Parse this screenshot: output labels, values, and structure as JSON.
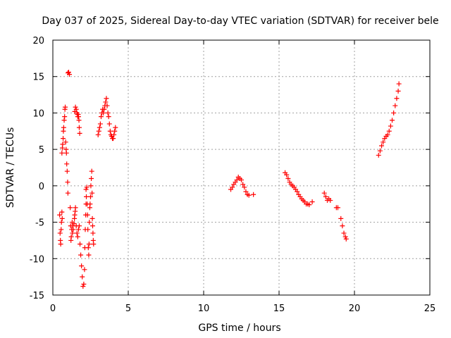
{
  "chart_data": {
    "type": "scatter",
    "title": "Day 037 of 2025, Sidereal Day-to-day VTEC variation (SDTVAR) for receiver bele",
    "xlabel": "GPS time / hours",
    "ylabel": "SDTVAR / TECUs",
    "xlim": [
      0,
      25
    ],
    "ylim": [
      -15,
      20
    ],
    "xticks": [
      0,
      5,
      10,
      15,
      20,
      25
    ],
    "yticks": [
      -15,
      -10,
      -5,
      0,
      5,
      10,
      15,
      20
    ],
    "x_tick_labels": [
      "0",
      "5",
      "10",
      "15",
      "20",
      "25"
    ],
    "y_tick_labels": [
      "-15",
      "-10",
      "-5",
      "0",
      "5",
      "10",
      "15",
      "20"
    ],
    "grid": true,
    "marker": "plus",
    "color": "#ff0000",
    "series": [
      {
        "name": "SDTVAR",
        "points": [
          [
            0.45,
            -4.0
          ],
          [
            0.48,
            -6.5
          ],
          [
            0.5,
            -7.5
          ],
          [
            0.52,
            -8.0
          ],
          [
            0.55,
            -6.0
          ],
          [
            0.57,
            -5.0
          ],
          [
            0.6,
            -3.6
          ],
          [
            0.62,
            -4.5
          ],
          [
            0.6,
            4.5
          ],
          [
            0.63,
            5.2
          ],
          [
            0.65,
            5.7
          ],
          [
            0.68,
            6.5
          ],
          [
            0.7,
            7.5
          ],
          [
            0.72,
            8.0
          ],
          [
            0.75,
            9.0
          ],
          [
            0.78,
            9.5
          ],
          [
            0.8,
            10.5
          ],
          [
            0.82,
            10.8
          ],
          [
            0.85,
            6.0
          ],
          [
            0.88,
            5.0
          ],
          [
            0.9,
            4.5
          ],
          [
            0.92,
            3.0
          ],
          [
            0.95,
            2.0
          ],
          [
            0.98,
            0.5
          ],
          [
            1.0,
            -1.0
          ],
          [
            1.0,
            15.5
          ],
          [
            1.05,
            15.6
          ],
          [
            1.1,
            15.3
          ],
          [
            1.15,
            -3.0
          ],
          [
            1.18,
            -5.5
          ],
          [
            1.2,
            -7.5
          ],
          [
            1.22,
            -7.0
          ],
          [
            1.25,
            -6.0
          ],
          [
            1.28,
            -5.0
          ],
          [
            1.3,
            -6.5
          ],
          [
            1.32,
            -5.5
          ],
          [
            1.35,
            -6.0
          ],
          [
            1.4,
            -5.2
          ],
          [
            1.43,
            -4.5
          ],
          [
            1.45,
            -4.0
          ],
          [
            1.48,
            -3.5
          ],
          [
            1.5,
            -3.0
          ],
          [
            1.45,
            10.2
          ],
          [
            1.5,
            10.8
          ],
          [
            1.55,
            10.5
          ],
          [
            1.6,
            10.0
          ],
          [
            1.63,
            9.8
          ],
          [
            1.65,
            9.5
          ],
          [
            1.68,
            9.8
          ],
          [
            1.7,
            9.5
          ],
          [
            1.73,
            9.0
          ],
          [
            1.75,
            8.0
          ],
          [
            1.78,
            7.2
          ],
          [
            1.55,
            -5.5
          ],
          [
            1.6,
            -6.5
          ],
          [
            1.65,
            -7.0
          ],
          [
            1.7,
            -6.0
          ],
          [
            1.75,
            -5.5
          ],
          [
            1.8,
            -8.0
          ],
          [
            1.85,
            -9.5
          ],
          [
            1.9,
            -11.0
          ],
          [
            1.95,
            -12.5
          ],
          [
            2.0,
            -13.8
          ],
          [
            2.05,
            -13.5
          ],
          [
            2.1,
            -11.5
          ],
          [
            2.12,
            -8.5
          ],
          [
            2.15,
            -6.0
          ],
          [
            2.18,
            -4.0
          ],
          [
            2.2,
            -2.5
          ],
          [
            2.2,
            -0.5
          ],
          [
            2.22,
            -1.5
          ],
          [
            2.25,
            -0.2
          ],
          [
            2.28,
            -2.5
          ],
          [
            2.3,
            -4.0
          ],
          [
            2.32,
            -6.0
          ],
          [
            2.35,
            -8.5
          ],
          [
            2.38,
            -9.5
          ],
          [
            2.4,
            -8.0
          ],
          [
            2.42,
            -5.0
          ],
          [
            2.45,
            -3.0
          ],
          [
            2.47,
            -2.5
          ],
          [
            2.5,
            -1.5
          ],
          [
            2.52,
            0.0
          ],
          [
            2.55,
            1.0
          ],
          [
            2.58,
            2.0
          ],
          [
            2.6,
            -1.0
          ],
          [
            2.62,
            -4.5
          ],
          [
            2.64,
            -5.5
          ],
          [
            2.66,
            -6.5
          ],
          [
            2.68,
            -7.5
          ],
          [
            2.7,
            -8.0
          ],
          [
            3.0,
            7.0
          ],
          [
            3.05,
            7.5
          ],
          [
            3.1,
            8.0
          ],
          [
            3.15,
            8.5
          ],
          [
            3.2,
            9.5
          ],
          [
            3.25,
            10.0
          ],
          [
            3.3,
            10.5
          ],
          [
            3.35,
            10.0
          ],
          [
            3.4,
            10.5
          ],
          [
            3.45,
            11.0
          ],
          [
            3.5,
            11.5
          ],
          [
            3.55,
            12.0
          ],
          [
            3.6,
            11.0
          ],
          [
            3.65,
            10.0
          ],
          [
            3.7,
            9.5
          ],
          [
            3.75,
            8.5
          ],
          [
            3.8,
            7.5
          ],
          [
            3.85,
            7.0
          ],
          [
            3.9,
            6.8
          ],
          [
            3.95,
            6.5
          ],
          [
            4.0,
            6.5
          ],
          [
            4.05,
            7.0
          ],
          [
            4.1,
            7.5
          ],
          [
            4.15,
            8.0
          ],
          [
            11.8,
            -0.5
          ],
          [
            11.9,
            -0.2
          ],
          [
            12.0,
            0.2
          ],
          [
            12.1,
            0.5
          ],
          [
            12.2,
            0.8
          ],
          [
            12.3,
            1.2
          ],
          [
            12.4,
            1.0
          ],
          [
            12.5,
            0.8
          ],
          [
            12.6,
            0.2
          ],
          [
            12.7,
            -0.2
          ],
          [
            12.8,
            -0.8
          ],
          [
            12.9,
            -1.2
          ],
          [
            13.0,
            -1.3
          ],
          [
            13.3,
            -1.2
          ],
          [
            15.4,
            1.8
          ],
          [
            15.5,
            1.5
          ],
          [
            15.6,
            1.0
          ],
          [
            15.7,
            0.5
          ],
          [
            15.8,
            0.2
          ],
          [
            15.9,
            0.0
          ],
          [
            16.0,
            -0.2
          ],
          [
            16.1,
            -0.5
          ],
          [
            16.2,
            -0.8
          ],
          [
            16.3,
            -1.2
          ],
          [
            16.4,
            -1.5
          ],
          [
            16.5,
            -1.8
          ],
          [
            16.6,
            -2.0
          ],
          [
            16.7,
            -2.2
          ],
          [
            16.8,
            -2.5
          ],
          [
            16.9,
            -2.5
          ],
          [
            17.0,
            -2.6
          ],
          [
            17.2,
            -2.2
          ],
          [
            18.0,
            -1.0
          ],
          [
            18.1,
            -1.5
          ],
          [
            18.2,
            -2.0
          ],
          [
            18.3,
            -1.8
          ],
          [
            18.4,
            -2.0
          ],
          [
            18.8,
            -3.0
          ],
          [
            18.9,
            -3.0
          ],
          [
            19.1,
            -4.5
          ],
          [
            19.2,
            -5.5
          ],
          [
            19.3,
            -6.5
          ],
          [
            19.4,
            -7.0
          ],
          [
            19.45,
            -7.3
          ],
          [
            21.6,
            4.2
          ],
          [
            21.7,
            4.8
          ],
          [
            21.8,
            5.5
          ],
          [
            21.9,
            6.0
          ],
          [
            22.0,
            6.5
          ],
          [
            22.1,
            6.8
          ],
          [
            22.2,
            7.0
          ],
          [
            22.3,
            7.5
          ],
          [
            22.4,
            8.2
          ],
          [
            22.5,
            9.0
          ],
          [
            22.6,
            10.0
          ],
          [
            22.7,
            11.0
          ],
          [
            22.8,
            12.0
          ],
          [
            22.9,
            13.0
          ],
          [
            22.95,
            14.0
          ]
        ]
      }
    ]
  }
}
